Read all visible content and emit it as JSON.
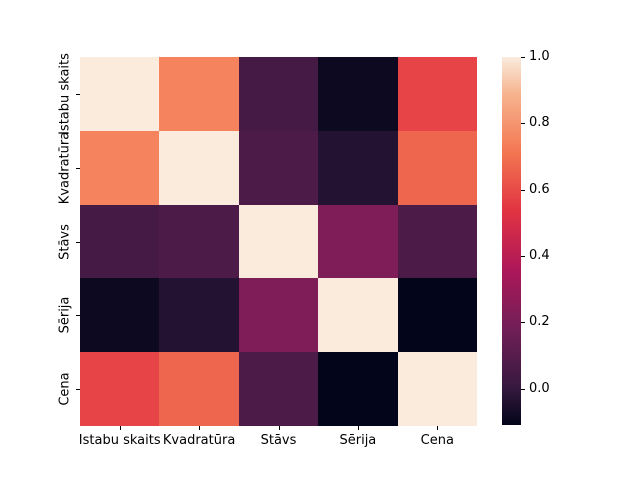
{
  "chart_data": {
    "type": "heatmap",
    "title": "",
    "xlabel": "",
    "ylabel": "",
    "categories": [
      "Istabu skaits",
      "Kvadratūra",
      "Stāvs",
      "Sērija",
      "Cena"
    ],
    "matrix": [
      [
        1.0,
        0.75,
        0.05,
        -0.09,
        0.58
      ],
      [
        0.75,
        1.0,
        0.07,
        -0.04,
        0.67
      ],
      [
        0.05,
        0.07,
        1.0,
        0.22,
        0.07
      ],
      [
        -0.09,
        -0.04,
        0.22,
        1.0,
        -0.11
      ],
      [
        0.58,
        0.67,
        0.07,
        -0.11,
        1.0
      ]
    ],
    "vmin": -0.11,
    "vmax": 1.0,
    "grid": false,
    "cell_annotations": false,
    "legend_position": "colorbar-right",
    "colorbar_ticks": [
      "1.0",
      "0.8",
      "0.6",
      "0.4",
      "0.2",
      "0.0"
    ],
    "colorbar_tick_values": [
      1.0,
      0.8,
      0.6,
      0.4,
      0.2,
      0.0
    ],
    "colormap": {
      "name": "rocket",
      "anchors": [
        {
          "pos": 0.0,
          "color": "#03051A"
        },
        {
          "pos": 0.1,
          "color": "#35193E"
        },
        {
          "pos": 0.26,
          "color": "#701F57"
        },
        {
          "pos": 0.42,
          "color": "#AD1759"
        },
        {
          "pos": 0.58,
          "color": "#E13342"
        },
        {
          "pos": 0.74,
          "color": "#F37651"
        },
        {
          "pos": 0.9,
          "color": "#F6B48F"
        },
        {
          "pos": 1.0,
          "color": "#FAEBDD"
        }
      ]
    },
    "background_color": "#FFFFFF",
    "tick_color": "#000000"
  }
}
